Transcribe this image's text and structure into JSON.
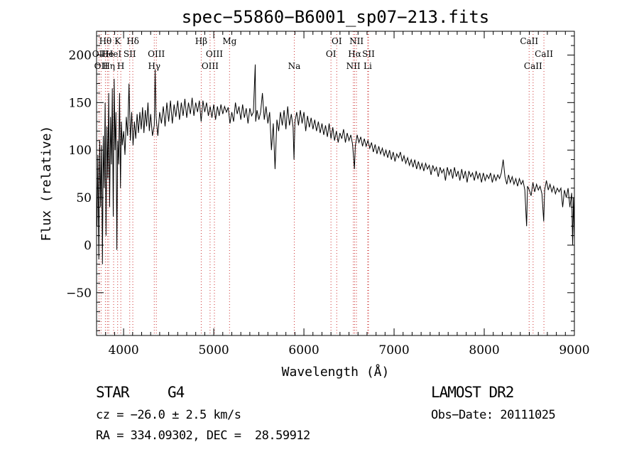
{
  "chart_data": {
    "type": "line",
    "title": "spec−55860−B6001_sp07−213.fits",
    "xlabel": "Wavelength (Å)",
    "ylabel": "Flux (relative)",
    "xlim": [
      3700,
      9000
    ],
    "ylim": [
      -95,
      225
    ],
    "x_ticks": [
      4000,
      5000,
      6000,
      7000,
      8000,
      9000
    ],
    "y_ticks": [
      -50,
      0,
      50,
      100,
      150,
      200
    ],
    "tick_labels_y": [
      "−50",
      "0",
      "50",
      "100",
      "150",
      "200"
    ],
    "grid": false,
    "series": [
      {
        "values": [
          [
            3705,
            20
          ],
          [
            3715,
            95
          ],
          [
            3725,
            -15
          ],
          [
            3735,
            110
          ],
          [
            3745,
            40
          ],
          [
            3755,
            105
          ],
          [
            3765,
            -20
          ],
          [
            3775,
            115
          ],
          [
            3785,
            60
          ],
          [
            3795,
            150
          ],
          [
            3805,
            10
          ],
          [
            3815,
            125
          ],
          [
            3825,
            70
          ],
          [
            3835,
            160
          ],
          [
            3845,
            40
          ],
          [
            3855,
            135
          ],
          [
            3865,
            85
          ],
          [
            3875,
            165
          ],
          [
            3885,
            30
          ],
          [
            3895,
            175
          ],
          [
            3905,
            100
          ],
          [
            3915,
            140
          ],
          [
            3925,
            -5
          ],
          [
            3935,
            110
          ],
          [
            3945,
            85
          ],
          [
            3955,
            160
          ],
          [
            3965,
            60
          ],
          [
            3975,
            130
          ],
          [
            3985,
            105
          ],
          [
            4000,
            120
          ],
          [
            4015,
            95
          ],
          [
            4030,
            135
          ],
          [
            4045,
            115
          ],
          [
            4060,
            170
          ],
          [
            4075,
            110
          ],
          [
            4090,
            140
          ],
          [
            4105,
            105
          ],
          [
            4120,
            130
          ],
          [
            4135,
            112
          ],
          [
            4150,
            138
          ],
          [
            4165,
            118
          ],
          [
            4180,
            140
          ],
          [
            4195,
            122
          ],
          [
            4210,
            145
          ],
          [
            4225,
            118
          ],
          [
            4240,
            142
          ],
          [
            4255,
            125
          ],
          [
            4270,
            150
          ],
          [
            4285,
            120
          ],
          [
            4300,
            138
          ],
          [
            4320,
            115
          ],
          [
            4340,
            126
          ],
          [
            4350,
            185
          ],
          [
            4360,
            135
          ],
          [
            4380,
            115
          ],
          [
            4400,
            140
          ],
          [
            4420,
            128
          ],
          [
            4440,
            146
          ],
          [
            4460,
            125
          ],
          [
            4480,
            150
          ],
          [
            4500,
            130
          ],
          [
            4520,
            152
          ],
          [
            4540,
            128
          ],
          [
            4560,
            148
          ],
          [
            4580,
            135
          ],
          [
            4600,
            152
          ],
          [
            4620,
            132
          ],
          [
            4640,
            150
          ],
          [
            4660,
            136
          ],
          [
            4680,
            154
          ],
          [
            4700,
            134
          ],
          [
            4720,
            150
          ],
          [
            4740,
            138
          ],
          [
            4760,
            155
          ],
          [
            4780,
            136
          ],
          [
            4800,
            150
          ],
          [
            4820,
            140
          ],
          [
            4840,
            152
          ],
          [
            4860,
            130
          ],
          [
            4880,
            152
          ],
          [
            4900,
            140
          ],
          [
            4920,
            150
          ],
          [
            4940,
            136
          ],
          [
            4960,
            146
          ],
          [
            4980,
            134
          ],
          [
            5000,
            148
          ],
          [
            5020,
            132
          ],
          [
            5040,
            146
          ],
          [
            5060,
            136
          ],
          [
            5080,
            148
          ],
          [
            5100,
            138
          ],
          [
            5120,
            146
          ],
          [
            5140,
            140
          ],
          [
            5160,
            145
          ],
          [
            5180,
            128
          ],
          [
            5200,
            140
          ],
          [
            5220,
            130
          ],
          [
            5240,
            150
          ],
          [
            5260,
            138
          ],
          [
            5280,
            146
          ],
          [
            5300,
            132
          ],
          [
            5320,
            148
          ],
          [
            5340,
            134
          ],
          [
            5360,
            144
          ],
          [
            5380,
            128
          ],
          [
            5400,
            144
          ],
          [
            5420,
            136
          ],
          [
            5440,
            140
          ],
          [
            5460,
            190
          ],
          [
            5465,
            130
          ],
          [
            5480,
            142
          ],
          [
            5500,
            132
          ],
          [
            5520,
            140
          ],
          [
            5540,
            160
          ],
          [
            5560,
            132
          ],
          [
            5580,
            146
          ],
          [
            5600,
            128
          ],
          [
            5620,
            140
          ],
          [
            5640,
            100
          ],
          [
            5660,
            128
          ],
          [
            5680,
            80
          ],
          [
            5700,
            132
          ],
          [
            5720,
            120
          ],
          [
            5740,
            140
          ],
          [
            5760,
            126
          ],
          [
            5780,
            142
          ],
          [
            5800,
            122
          ],
          [
            5820,
            146
          ],
          [
            5840,
            126
          ],
          [
            5860,
            138
          ],
          [
            5880,
            124
          ],
          [
            5890,
            90
          ],
          [
            5900,
            130
          ],
          [
            5920,
            140
          ],
          [
            5940,
            126
          ],
          [
            5960,
            142
          ],
          [
            5980,
            128
          ],
          [
            6000,
            140
          ],
          [
            6020,
            120
          ],
          [
            6040,
            136
          ],
          [
            6060,
            124
          ],
          [
            6080,
            134
          ],
          [
            6100,
            122
          ],
          [
            6120,
            132
          ],
          [
            6140,
            120
          ],
          [
            6160,
            130
          ],
          [
            6180,
            118
          ],
          [
            6200,
            128
          ],
          [
            6220,
            116
          ],
          [
            6240,
            126
          ],
          [
            6260,
            114
          ],
          [
            6280,
            128
          ],
          [
            6300,
            112
          ],
          [
            6320,
            124
          ],
          [
            6340,
            110
          ],
          [
            6360,
            120
          ],
          [
            6380,
            108
          ],
          [
            6400,
            118
          ],
          [
            6420,
            112
          ],
          [
            6440,
            122
          ],
          [
            6460,
            108
          ],
          [
            6480,
            118
          ],
          [
            6500,
            110
          ],
          [
            6520,
            116
          ],
          [
            6540,
            106
          ],
          [
            6560,
            80
          ],
          [
            6570,
            104
          ],
          [
            6590,
            116
          ],
          [
            6610,
            108
          ],
          [
            6630,
            114
          ],
          [
            6650,
            104
          ],
          [
            6670,
            112
          ],
          [
            6690,
            104
          ],
          [
            6710,
            110
          ],
          [
            6730,
            102
          ],
          [
            6750,
            108
          ],
          [
            6770,
            98
          ],
          [
            6790,
            106
          ],
          [
            6810,
            96
          ],
          [
            6830,
            104
          ],
          [
            6850,
            96
          ],
          [
            6870,
            102
          ],
          [
            6890,
            94
          ],
          [
            6910,
            100
          ],
          [
            6930,
            92
          ],
          [
            6950,
            100
          ],
          [
            6970,
            90
          ],
          [
            6990,
            98
          ],
          [
            7010,
            88
          ],
          [
            7030,
            96
          ],
          [
            7050,
            92
          ],
          [
            7070,
            98
          ],
          [
            7090,
            88
          ],
          [
            7110,
            94
          ],
          [
            7130,
            86
          ],
          [
            7150,
            92
          ],
          [
            7170,
            84
          ],
          [
            7190,
            90
          ],
          [
            7210,
            82
          ],
          [
            7230,
            90
          ],
          [
            7250,
            80
          ],
          [
            7270,
            88
          ],
          [
            7290,
            80
          ],
          [
            7310,
            86
          ],
          [
            7330,
            78
          ],
          [
            7350,
            86
          ],
          [
            7370,
            80
          ],
          [
            7390,
            84
          ],
          [
            7410,
            74
          ],
          [
            7430,
            84
          ],
          [
            7450,
            78
          ],
          [
            7470,
            82
          ],
          [
            7490,
            72
          ],
          [
            7510,
            82
          ],
          [
            7530,
            76
          ],
          [
            7550,
            80
          ],
          [
            7570,
            68
          ],
          [
            7590,
            82
          ],
          [
            7610,
            74
          ],
          [
            7630,
            80
          ],
          [
            7650,
            70
          ],
          [
            7670,
            82
          ],
          [
            7690,
            72
          ],
          [
            7710,
            78
          ],
          [
            7730,
            68
          ],
          [
            7750,
            80
          ],
          [
            7770,
            70
          ],
          [
            7790,
            78
          ],
          [
            7810,
            66
          ],
          [
            7830,
            78
          ],
          [
            7850,
            72
          ],
          [
            7870,
            76
          ],
          [
            7890,
            68
          ],
          [
            7910,
            78
          ],
          [
            7930,
            70
          ],
          [
            7950,
            76
          ],
          [
            7970,
            66
          ],
          [
            7990,
            76
          ],
          [
            8010,
            68
          ],
          [
            8030,
            74
          ],
          [
            8050,
            70
          ],
          [
            8070,
            76
          ],
          [
            8090,
            66
          ],
          [
            8110,
            74
          ],
          [
            8130,
            68
          ],
          [
            8150,
            74
          ],
          [
            8170,
            70
          ],
          [
            8190,
            76
          ],
          [
            8210,
            90
          ],
          [
            8230,
            72
          ],
          [
            8250,
            64
          ],
          [
            8270,
            74
          ],
          [
            8290,
            66
          ],
          [
            8310,
            72
          ],
          [
            8330,
            64
          ],
          [
            8350,
            70
          ],
          [
            8370,
            62
          ],
          [
            8390,
            70
          ],
          [
            8410,
            64
          ],
          [
            8430,
            68
          ],
          [
            8450,
            58
          ],
          [
            8470,
            20
          ],
          [
            8480,
            62
          ],
          [
            8500,
            58
          ],
          [
            8520,
            52
          ],
          [
            8540,
            66
          ],
          [
            8560,
            56
          ],
          [
            8580,
            64
          ],
          [
            8600,
            58
          ],
          [
            8620,
            62
          ],
          [
            8640,
            54
          ],
          [
            8660,
            25
          ],
          [
            8670,
            58
          ],
          [
            8690,
            68
          ],
          [
            8710,
            58
          ],
          [
            8730,
            64
          ],
          [
            8750,
            56
          ],
          [
            8770,
            62
          ],
          [
            8790,
            54
          ],
          [
            8810,
            60
          ],
          [
            8830,
            56
          ],
          [
            8850,
            60
          ],
          [
            8870,
            40
          ],
          [
            8890,
            58
          ],
          [
            8910,
            50
          ],
          [
            8930,
            60
          ],
          [
            8950,
            40
          ],
          [
            8970,
            55
          ],
          [
            8980,
            0
          ],
          [
            8990,
            50
          ],
          [
            9000,
            5
          ]
        ]
      }
    ],
    "line_markers": [
      {
        "x": 3727,
        "label": "OII",
        "row": 1
      },
      {
        "x": 3750,
        "label": "OII",
        "row": 2
      },
      {
        "x": 3798,
        "label": "Hθ",
        "row": 0
      },
      {
        "x": 3820,
        "label": "He",
        "row": 1
      },
      {
        "x": 3835,
        "label": "Hη",
        "row": 2
      },
      {
        "x": 3889,
        "label": "HeI",
        "row": 1
      },
      {
        "x": 3934,
        "label": "K",
        "row": 0
      },
      {
        "x": 3969,
        "label": "H",
        "row": 2
      },
      {
        "x": 4068,
        "label": "SII",
        "row": 1
      },
      {
        "x": 4102,
        "label": "Hδ",
        "row": 0
      },
      {
        "x": 4340,
        "label": "Hγ",
        "row": 2
      },
      {
        "x": 4363,
        "label": "OIII",
        "row": 1
      },
      {
        "x": 4861,
        "label": "Hβ",
        "row": 0
      },
      {
        "x": 4959,
        "label": "OIII",
        "row": 2
      },
      {
        "x": 5007,
        "label": "OIII",
        "row": 1
      },
      {
        "x": 5175,
        "label": "Mg",
        "row": 0
      },
      {
        "x": 5893,
        "label": "Na",
        "row": 2
      },
      {
        "x": 6300,
        "label": "OI",
        "row": 1
      },
      {
        "x": 6364,
        "label": "OI",
        "row": 0
      },
      {
        "x": 6548,
        "label": "NII",
        "row": 2
      },
      {
        "x": 6563,
        "label": "Hα",
        "row": 1
      },
      {
        "x": 6583,
        "label": "NII",
        "row": 0
      },
      {
        "x": 6716,
        "label": "SII",
        "row": 1
      },
      {
        "x": 6708,
        "label": "Li",
        "row": 2
      },
      {
        "x": 8498,
        "label": "CaII",
        "row": 0
      },
      {
        "x": 8542,
        "label": "CaII",
        "row": 2
      },
      {
        "x": 8662,
        "label": "CaII",
        "row": 1
      }
    ]
  },
  "info": {
    "class": "STAR",
    "subclass": "G4",
    "survey": "LAMOST DR2",
    "cz": "cz = −26.0 ± 2.5 km/s",
    "obs_date": "Obs−Date: 20111025",
    "radec": "RA = 334.09302, DEC =  28.59912"
  }
}
